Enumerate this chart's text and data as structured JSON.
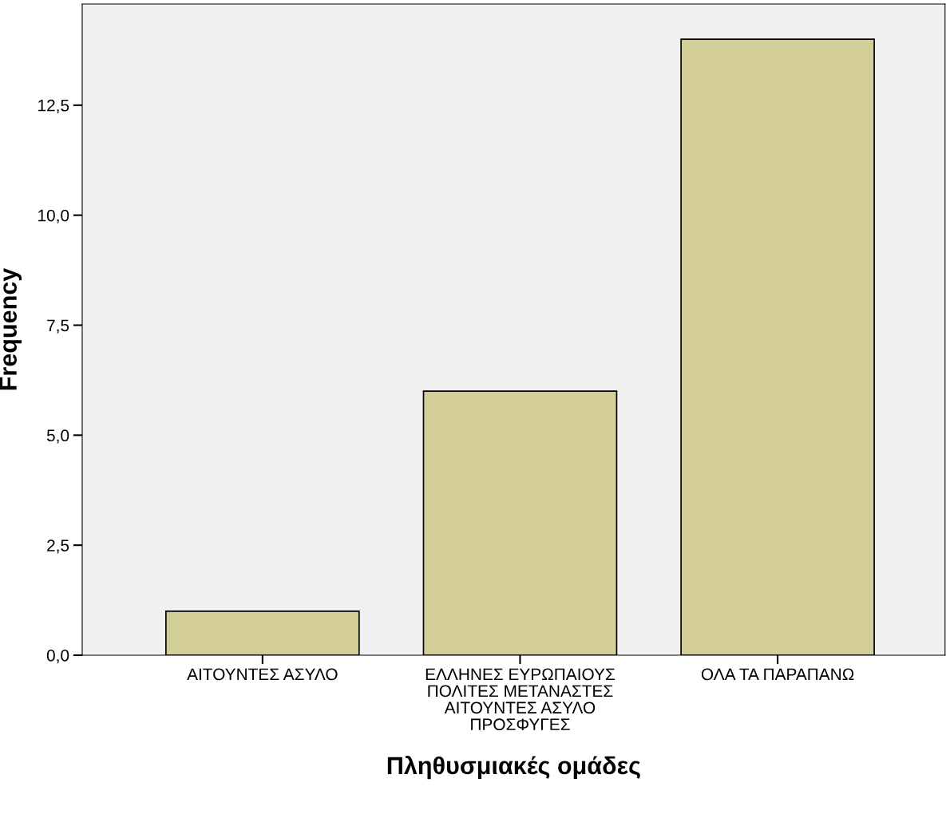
{
  "chart_data": {
    "type": "bar",
    "xlabel": "Πληθυσμιακές ομάδες",
    "ylabel": "Frequency",
    "categories": [
      "ΑΙΤΟΥΝΤΕΣ ΑΣΥΛΟ",
      "ΕΛΛΗΝΕΣ ΕΥΡΩΠΑΙΟΥΣ\nΠΟΛΙΤΕΣ ΜΕΤΑΝΑΣΤΕΣ\nΑΙΤΟΥΝΤΕΣ ΑΣΥΛΟ\nΠΡΟΣΦΥΓΕΣ",
      "ΟΛΑ ΤΑ ΠΑΡΑΠΑΝΩ"
    ],
    "values": [
      1,
      6,
      14
    ],
    "color": "#d3ce97",
    "ylim": [
      0,
      14.8
    ],
    "yticks": [
      {
        "value": 0,
        "label": "0,0"
      },
      {
        "value": 2.5,
        "label": "2,5"
      },
      {
        "value": 5,
        "label": "5,0"
      },
      {
        "value": 7.5,
        "label": "7,5"
      },
      {
        "value": 10,
        "label": "10,0"
      },
      {
        "value": 12.5,
        "label": "12,5"
      }
    ],
    "grid": false,
    "legend": false
  }
}
